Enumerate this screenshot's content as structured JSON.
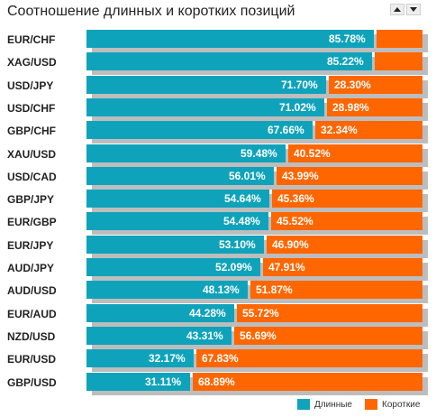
{
  "header": {
    "title": "Соотношение длинных и коротких позиций"
  },
  "chart_data": {
    "type": "bar",
    "stacked": true,
    "orientation": "horizontal",
    "title": "Соотношение длинных и коротких позиций",
    "categories": [
      "EUR/CHF",
      "XAG/USD",
      "USD/JPY",
      "USD/CHF",
      "GBP/CHF",
      "XAU/USD",
      "USD/CAD",
      "GBP/JPY",
      "EUR/GBP",
      "EUR/JPY",
      "AUD/JPY",
      "AUD/USD",
      "EUR/AUD",
      "NZD/USD",
      "EUR/USD",
      "GBP/USD"
    ],
    "series": [
      {
        "name": "Длинные",
        "color": "#0fa3bb",
        "values": [
          85.78,
          85.22,
          71.7,
          71.02,
          67.66,
          59.48,
          56.01,
          54.64,
          54.48,
          53.1,
          52.09,
          48.13,
          44.28,
          43.31,
          32.17,
          31.11
        ],
        "labels": [
          "85.78%",
          "85.22%",
          "71.70%",
          "71.02%",
          "67.66%",
          "59.48%",
          "56.01%",
          "54.64%",
          "54.48%",
          "53.10%",
          "52.09%",
          "48.13%",
          "44.28%",
          "43.31%",
          "32.17%",
          "31.11%"
        ]
      },
      {
        "name": "Короткие",
        "color": "#ff6600",
        "values": [
          14.22,
          14.78,
          28.3,
          28.98,
          32.34,
          40.52,
          43.99,
          45.36,
          45.52,
          46.9,
          47.91,
          51.87,
          55.72,
          56.69,
          67.83,
          68.89
        ],
        "labels": [
          "",
          "",
          "28.30%",
          "28.98%",
          "32.34%",
          "40.52%",
          "43.99%",
          "45.36%",
          "45.52%",
          "46.90%",
          "47.91%",
          "51.87%",
          "55.72%",
          "56.69%",
          "67.83%",
          "68.89%"
        ]
      }
    ],
    "xlim": [
      0,
      100
    ],
    "legend": "bottom-right"
  },
  "legend": {
    "long_label": "Длинные",
    "short_label": "Короткие"
  }
}
